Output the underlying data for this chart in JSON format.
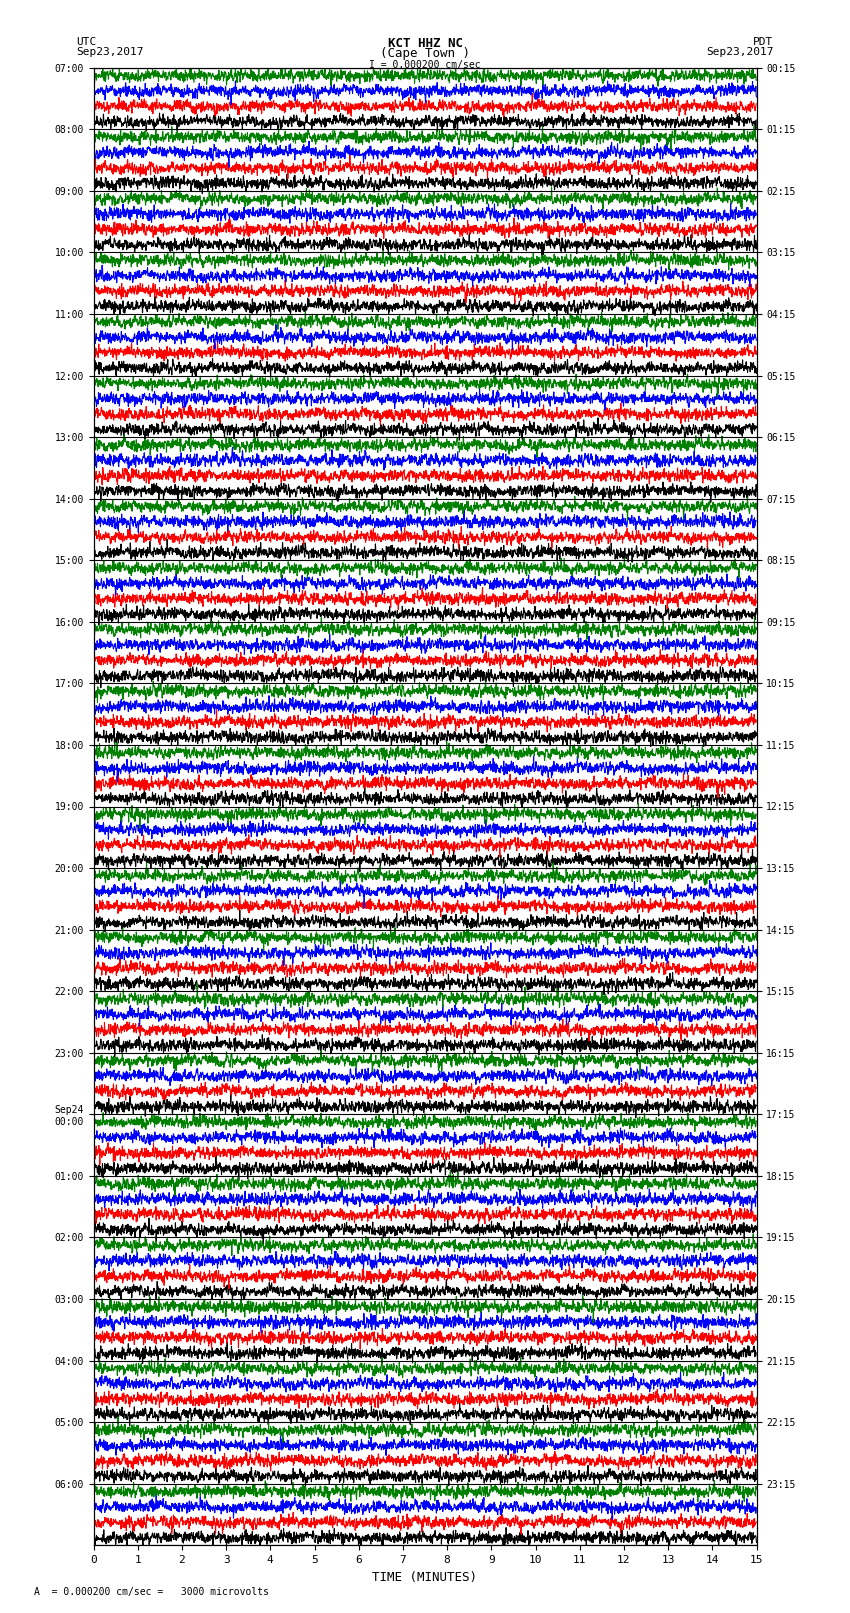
{
  "title_line1": "KCT HHZ NC",
  "title_line2": "(Cape Town )",
  "scale_label": "I = 0.000200 cm/sec",
  "utc_label": "UTC",
  "utc_date": "Sep23,2017",
  "pdt_label": "PDT",
  "pdt_date": "Sep23,2017",
  "bottom_label": "A  = 0.000200 cm/sec =   3000 microvolts",
  "xlabel": "TIME (MINUTES)",
  "left_times": [
    "07:00",
    "08:00",
    "09:00",
    "10:00",
    "11:00",
    "12:00",
    "13:00",
    "14:00",
    "15:00",
    "16:00",
    "17:00",
    "18:00",
    "19:00",
    "20:00",
    "21:00",
    "22:00",
    "23:00",
    "Sep24\n00:00",
    "01:00",
    "02:00",
    "03:00",
    "04:00",
    "05:00",
    "06:00"
  ],
  "right_times": [
    "00:15",
    "01:15",
    "02:15",
    "03:15",
    "04:15",
    "05:15",
    "06:15",
    "07:15",
    "08:15",
    "09:15",
    "10:15",
    "11:15",
    "12:15",
    "13:15",
    "14:15",
    "15:15",
    "16:15",
    "17:15",
    "18:15",
    "19:15",
    "20:15",
    "21:15",
    "22:15",
    "23:15"
  ],
  "n_rows": 24,
  "n_cols": 2000,
  "bg_color": "#ffffff",
  "colors": [
    "black",
    "red",
    "blue",
    "green"
  ],
  "sub_amplitudes": [
    0.9,
    0.9,
    0.9,
    0.9
  ],
  "linewidth": 0.8
}
